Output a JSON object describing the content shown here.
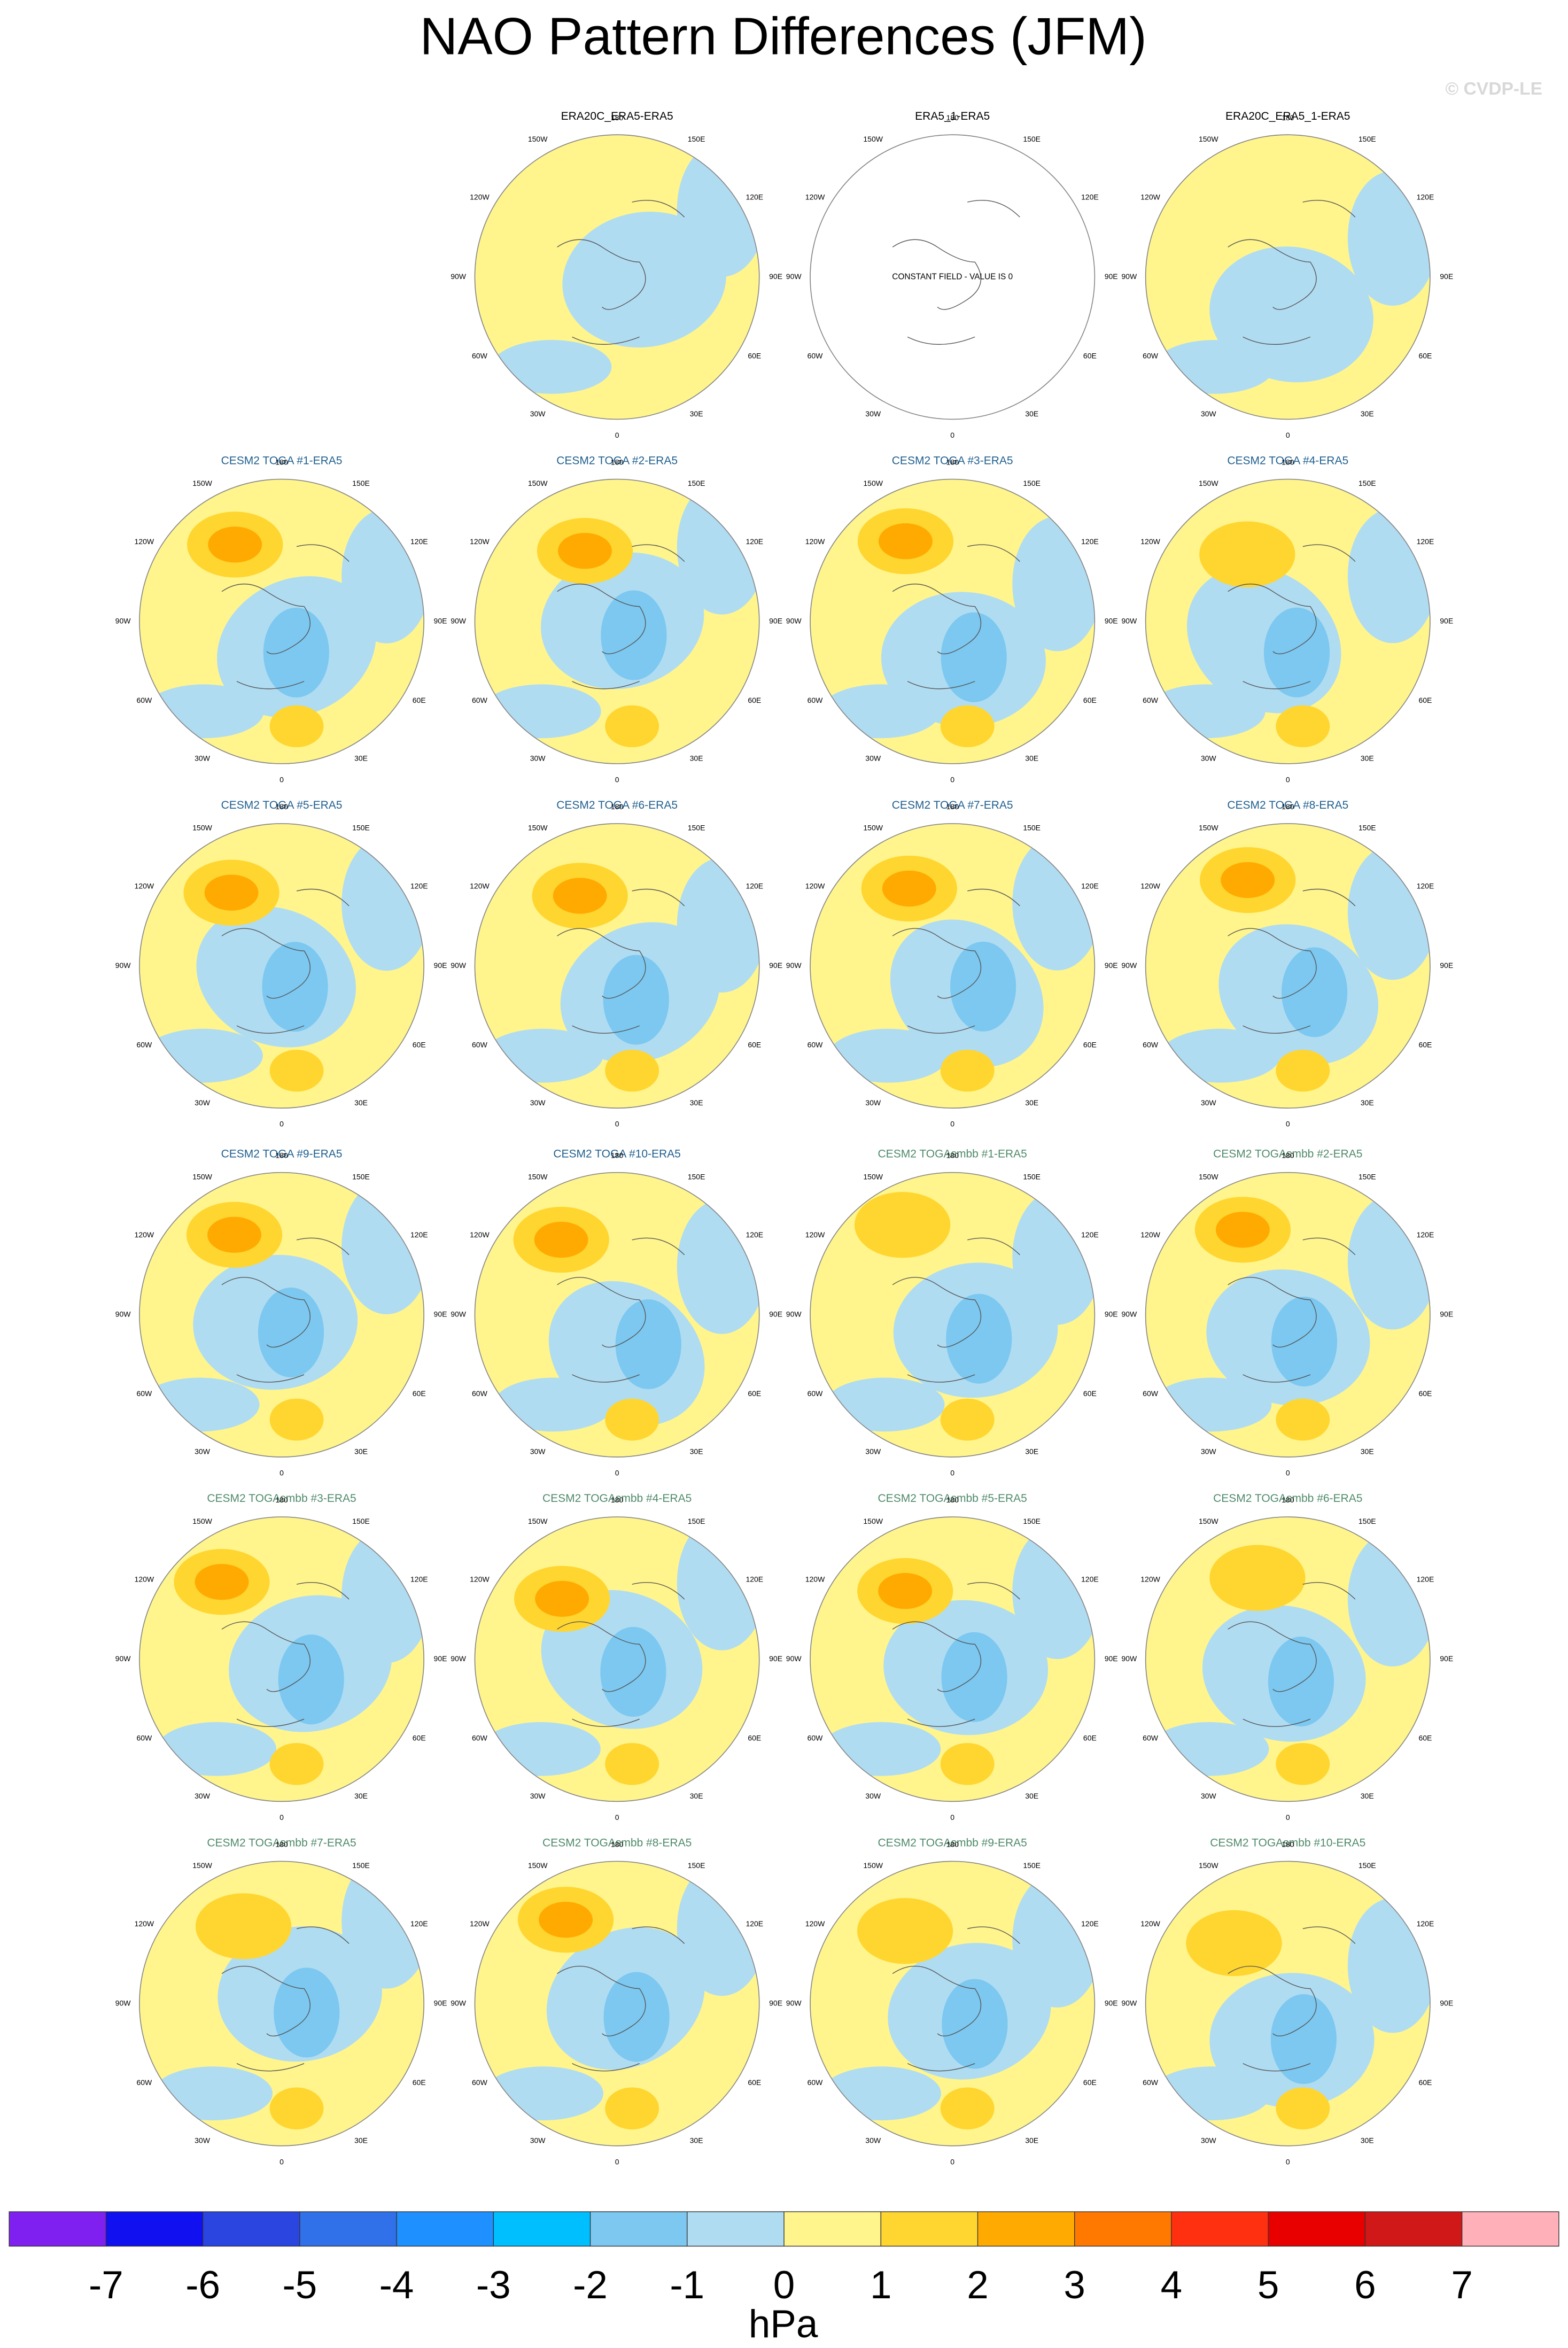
{
  "header": {
    "title": "NAO Pattern Differences (JFM)",
    "watermark": "© CVDP-LE"
  },
  "longitude_labels": [
    "180",
    "150E",
    "120E",
    "90E",
    "60E",
    "30E",
    "0",
    "30W",
    "60W",
    "90W",
    "120W",
    "150W"
  ],
  "panels": [
    {
      "title": "ERA20C_ERA5-ERA5",
      "color": "#000000"
    },
    {
      "title": "ERA5_1-ERA5",
      "color": "#000000",
      "note": "CONSTANT FIELD - VALUE IS 0"
    },
    {
      "title": "ERA20C_ERA5_1-ERA5",
      "color": "#000000"
    },
    {
      "title": "CESM2 TOGA #1-ERA5",
      "color": "#1f5f8f"
    },
    {
      "title": "CESM2 TOGA #2-ERA5",
      "color": "#1f5f8f"
    },
    {
      "title": "CESM2 TOGA #3-ERA5",
      "color": "#1f5f8f"
    },
    {
      "title": "CESM2 TOGA #4-ERA5",
      "color": "#1f5f8f"
    },
    {
      "title": "CESM2 TOGA #5-ERA5",
      "color": "#1f5f8f"
    },
    {
      "title": "CESM2 TOGA #6-ERA5",
      "color": "#1f5f8f"
    },
    {
      "title": "CESM2 TOGA #7-ERA5",
      "color": "#1f5f8f"
    },
    {
      "title": "CESM2 TOGA #8-ERA5",
      "color": "#1f5f8f"
    },
    {
      "title": "CESM2 TOGA #9-ERA5",
      "color": "#1f5f8f"
    },
    {
      "title": "CESM2 TOGA #10-ERA5",
      "color": "#1f5f8f"
    },
    {
      "title": "CESM2 TOGAsmbb #1-ERA5",
      "color": "#4f8a6a"
    },
    {
      "title": "CESM2 TOGAsmbb #2-ERA5",
      "color": "#4f8a6a"
    },
    {
      "title": "CESM2 TOGAsmbb #3-ERA5",
      "color": "#4f8a6a"
    },
    {
      "title": "CESM2 TOGAsmbb #4-ERA5",
      "color": "#4f8a6a"
    },
    {
      "title": "CESM2 TOGAsmbb #5-ERA5",
      "color": "#4f8a6a"
    },
    {
      "title": "CESM2 TOGAsmbb #6-ERA5",
      "color": "#4f8a6a"
    },
    {
      "title": "CESM2 TOGAsmbb #7-ERA5",
      "color": "#4f8a6a"
    },
    {
      "title": "CESM2 TOGAsmbb #8-ERA5",
      "color": "#4f8a6a"
    },
    {
      "title": "CESM2 TOGAsmbb #9-ERA5",
      "color": "#4f8a6a"
    },
    {
      "title": "CESM2 TOGAsmbb #10-ERA5",
      "color": "#4f8a6a"
    }
  ],
  "colorbar": {
    "colors": [
      "#8020f0",
      "#1010f0",
      "#2a45e0",
      "#3070e8",
      "#1e90ff",
      "#00bfff",
      "#7cc8f0",
      "#b0dcf2",
      "#fff58c",
      "#ffd530",
      "#ffaa00",
      "#ff7800",
      "#ff3010",
      "#e80000",
      "#d01818",
      "#ffb0b8"
    ],
    "ticks": [
      -7,
      -6,
      -5,
      -4,
      -3,
      -2,
      -1,
      0,
      1,
      2,
      3,
      4,
      5,
      6,
      7
    ],
    "label": "hPa"
  }
}
